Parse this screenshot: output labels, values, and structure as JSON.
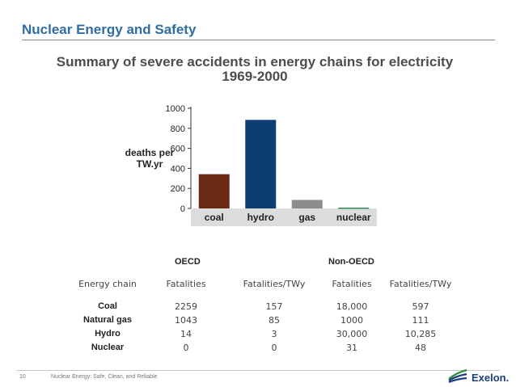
{
  "slide": {
    "title": "Nuclear Energy and Safety",
    "subtitle_line1": "Summary of severe accidents in energy chains for electricity",
    "subtitle_line2": "1969-2000"
  },
  "chart_data": {
    "type": "bar",
    "categories": [
      "coal",
      "hydro",
      "gas",
      "nuclear"
    ],
    "values": [
      342,
      884,
      85,
      8
    ],
    "colors": [
      "#6b2a14",
      "#0e3d73",
      "#8c8c8c",
      "#2e8b57"
    ],
    "title": "",
    "xlabel": "",
    "ylabel_line1": "deaths per",
    "ylabel_line2": "TW.yr",
    "ylim": [
      0,
      1000
    ],
    "yticks": [
      "0",
      "200",
      "400",
      "600",
      "800",
      "1000"
    ],
    "ytick_values": [
      0,
      200,
      400,
      600,
      800,
      1000
    ],
    "grid": false
  },
  "table": {
    "group_oecd": "OECD",
    "group_nonoecd": "Non-OECD",
    "headers": [
      "Energy chain",
      "Fatalities",
      "Fatalities/TWy",
      "Fatalities",
      "Fatalities/TWy"
    ],
    "rows": [
      {
        "chain": "Coal",
        "oecd_fat": "2259",
        "oecd_rate": "157",
        "non_fat": "18,000",
        "non_rate": "597"
      },
      {
        "chain": "Natural gas",
        "oecd_fat": "1043",
        "oecd_rate": "85",
        "non_fat": "1000",
        "non_rate": "111"
      },
      {
        "chain": "Hydro",
        "oecd_fat": "14",
        "oecd_rate": "3",
        "non_fat": "30,000",
        "non_rate": "10,285"
      },
      {
        "chain": "Nuclear",
        "oecd_fat": "0",
        "oecd_rate": "0",
        "non_fat": "31",
        "non_rate": "48"
      }
    ]
  },
  "footer": {
    "page_number": "10",
    "text": "Nuclear Energy: Safe, Clean, and Reliable",
    "logo_text": "Exelon."
  }
}
